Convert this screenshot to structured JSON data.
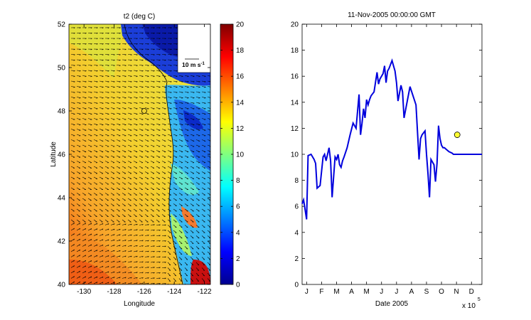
{
  "chart_data": [
    {
      "type": "heatmap",
      "title": "t2 (deg C)",
      "xlabel": "Longitude",
      "ylabel": "Latitude",
      "xlim": [
        -131,
        -121.6
      ],
      "ylim": [
        40,
        52
      ],
      "xticks": [
        -130,
        -128,
        -126,
        -124,
        -122
      ],
      "xtick_labels": [
        "-130",
        "-128",
        "-126",
        "-124",
        "-122"
      ],
      "yticks": [
        40,
        42,
        44,
        46,
        48,
        50,
        52
      ],
      "ytick_labels": [
        "40",
        "42",
        "44",
        "46",
        "48",
        "50",
        "52"
      ],
      "colorbar": {
        "range": [
          0,
          20
        ],
        "ticks": [
          0,
          2,
          4,
          6,
          8,
          10,
          12,
          14,
          16,
          18,
          20
        ],
        "tick_labels": [
          "0",
          "2",
          "4",
          "6",
          "8",
          "10",
          "12",
          "14",
          "16",
          "18",
          "20"
        ],
        "colormap": "jet"
      },
      "vector_key_label": "10 m s",
      "vector_key_exponent": "-1",
      "marker": {
        "lon": -126,
        "lat": 48
      }
    },
    {
      "type": "line",
      "title": "11-Nov-2005 00:00:00 GMT",
      "xlabel": "Date 2005",
      "ylabel": "",
      "ylim": [
        0,
        20
      ],
      "yticks": [
        0,
        2,
        4,
        6,
        8,
        10,
        12,
        14,
        16,
        18,
        20
      ],
      "ytick_labels": [
        "0",
        "2",
        "4",
        "6",
        "8",
        "10",
        "12",
        "14",
        "16",
        "18",
        "20"
      ],
      "xlim": [
        0,
        12
      ],
      "month_labels": [
        "J",
        "F",
        "M",
        "A",
        "M",
        "J",
        "J",
        "A",
        "S",
        "O",
        "N",
        "D"
      ],
      "x_exponent_label": "x 10",
      "x_exponent_power": "5",
      "series_color": "#0000dd",
      "x": [
        0.0,
        0.1,
        0.3,
        0.4,
        0.6,
        0.8,
        0.9,
        1.0,
        1.2,
        1.4,
        1.5,
        1.6,
        1.8,
        1.9,
        2.0,
        2.2,
        2.3,
        2.4,
        2.5,
        2.6,
        2.7,
        2.8,
        3.0,
        3.2,
        3.4,
        3.6,
        3.8,
        3.9,
        4.0,
        4.1,
        4.2,
        4.3,
        4.4,
        4.5,
        4.6,
        4.8,
        5.0,
        5.1,
        5.2,
        5.3,
        5.4,
        5.5,
        5.6,
        5.7,
        5.8,
        6.0,
        6.1,
        6.2,
        6.3,
        6.4,
        6.6,
        6.7,
        6.8,
        7.0,
        7.2,
        7.4,
        7.6,
        7.8,
        7.9,
        8.0,
        8.2,
        8.3,
        8.4,
        8.5,
        8.6,
        8.8,
        8.9,
        9.0,
        9.1,
        9.2,
        9.3,
        9.4,
        9.5,
        9.6,
        9.7,
        9.8,
        10.0,
        10.1,
        10.3,
        10.5,
        10.6,
        10.7,
        10.9,
        11.0,
        11.2,
        11.3,
        11.5,
        11.6,
        11.7,
        11.8,
        12.0
      ],
      "y": [
        6.2,
        6.5,
        5.0,
        9.9,
        10.0,
        9.6,
        9.3,
        7.4,
        7.6,
        9.8,
        10.0,
        9.5,
        10.5,
        9.5,
        6.7,
        9.8,
        9.6,
        10.0,
        9.2,
        9.0,
        9.5,
        9.8,
        10.5,
        11.5,
        12.4,
        12.0,
        14.6,
        11.5,
        12.4,
        13.5,
        12.8,
        14.2,
        13.8,
        14.2,
        14.5,
        14.8,
        16.3,
        15.4,
        15.8,
        16.0,
        16.2,
        16.8,
        15.5,
        16.4,
        16.6,
        17.2,
        16.8,
        16.4,
        15.5,
        14.1,
        15.3,
        14.8,
        12.8,
        14.0,
        15.2,
        14.5,
        13.8,
        9.6,
        11.2,
        11.5,
        11.8,
        10.0,
        8.5,
        6.7,
        9.6,
        9.2,
        7.9,
        9.3,
        12.2,
        11.2,
        10.7,
        10.5,
        10.5,
        10.4,
        10.3,
        10.2,
        10.1,
        10.0,
        10.0,
        10.0,
        10.0,
        10.0,
        10.0,
        10.0,
        10.0,
        10.0,
        10.0,
        10.0,
        10.0,
        10.0,
        10.0
      ],
      "current_point": {
        "x": 10.35,
        "y": 11.5
      }
    }
  ]
}
